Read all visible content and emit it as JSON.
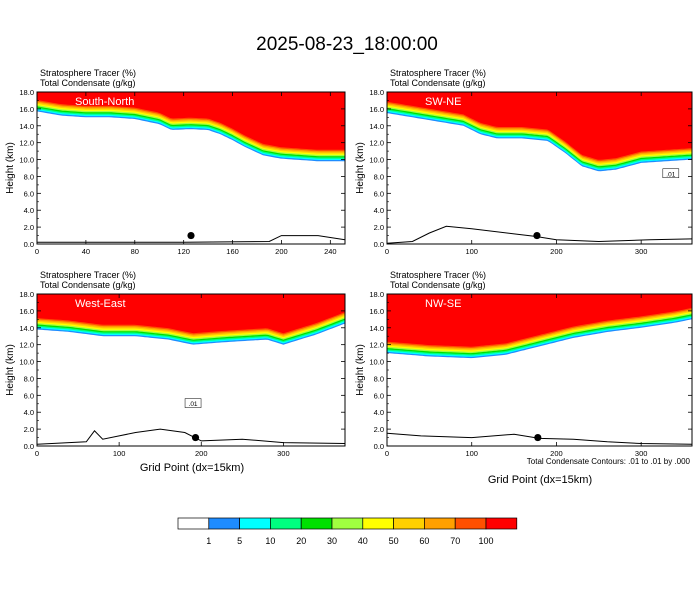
{
  "figure": {
    "title": "2025-08-23_18:00:00",
    "x_title": "Grid Point (dx=15km)",
    "contour_note": "Total Condensate Contours: .01 to .01 by .000",
    "colorbar": {
      "labels": [
        "1",
        "5",
        "10",
        "20",
        "30",
        "40",
        "50",
        "60",
        "70",
        "100"
      ],
      "colors": [
        "#ffffff",
        "#1e8cff",
        "#00ffff",
        "#00ff80",
        "#00e000",
        "#a0ff40",
        "#ffff00",
        "#ffd000",
        "#ffa000",
        "#ff5000",
        "#ff0000"
      ]
    }
  },
  "chart_data": [
    {
      "type": "heatmap",
      "title": "South-North",
      "subtitle1": "Stratosphere Tracer   (%)",
      "subtitle2": "Total Condensate   (g/kg)",
      "ylabel": "Height (km)",
      "xlabel": "",
      "xlim": [
        0,
        252
      ],
      "ylim": [
        0,
        18
      ],
      "xticks": [
        0,
        40,
        80,
        120,
        160,
        200,
        240
      ],
      "yticks": [
        0,
        2,
        4,
        6,
        8,
        10,
        12,
        14,
        16,
        18
      ],
      "tracer_boundary_height_km": [
        [
          0,
          15.7
        ],
        [
          20,
          15.2
        ],
        [
          40,
          15.0
        ],
        [
          60,
          15.0
        ],
        [
          80,
          14.8
        ],
        [
          100,
          14.2
        ],
        [
          110,
          13.5
        ],
        [
          125,
          13.6
        ],
        [
          140,
          13.5
        ],
        [
          150,
          13.0
        ],
        [
          160,
          12.3
        ],
        [
          170,
          11.5
        ],
        [
          185,
          10.5
        ],
        [
          200,
          10.1
        ],
        [
          230,
          9.8
        ],
        [
          252,
          9.8
        ]
      ],
      "terrain_height_km": [
        [
          0,
          0.2
        ],
        [
          120,
          0.2
        ],
        [
          190,
          0.3
        ],
        [
          200,
          1.0
        ],
        [
          230,
          1.0
        ],
        [
          252,
          0.5
        ]
      ],
      "marker": {
        "x": 126,
        "y": 1.0
      },
      "annotations": []
    },
    {
      "type": "heatmap",
      "title": "SW-NE",
      "subtitle1": "Stratosphere Tracer   (%)",
      "subtitle2": "Total Condensate   (g/kg)",
      "ylabel": "Height (km)",
      "xlabel": "",
      "xlim": [
        0,
        360
      ],
      "ylim": [
        0,
        18
      ],
      "xticks": [
        0,
        100,
        200,
        300
      ],
      "yticks": [
        0,
        2,
        4,
        6,
        8,
        10,
        12,
        14,
        16,
        18
      ],
      "tracer_boundary_height_km": [
        [
          0,
          15.5
        ],
        [
          30,
          15.0
        ],
        [
          60,
          14.5
        ],
        [
          90,
          14.0
        ],
        [
          110,
          13.0
        ],
        [
          130,
          12.5
        ],
        [
          160,
          12.5
        ],
        [
          190,
          12.2
        ],
        [
          210,
          10.8
        ],
        [
          230,
          9.2
        ],
        [
          250,
          8.6
        ],
        [
          270,
          8.8
        ],
        [
          300,
          9.6
        ],
        [
          330,
          9.8
        ],
        [
          360,
          10.0
        ]
      ],
      "terrain_height_km": [
        [
          0,
          0.1
        ],
        [
          30,
          0.3
        ],
        [
          50,
          1.3
        ],
        [
          70,
          2.1
        ],
        [
          100,
          1.8
        ],
        [
          150,
          1.2
        ],
        [
          175,
          0.9
        ],
        [
          200,
          0.5
        ],
        [
          250,
          0.3
        ],
        [
          310,
          0.5
        ],
        [
          360,
          0.6
        ]
      ],
      "marker": {
        "x": 177,
        "y": 1.0
      },
      "annotations": [
        ".01"
      ]
    },
    {
      "type": "heatmap",
      "title": "West-East",
      "subtitle1": "Stratosphere Tracer   (%)",
      "subtitle2": "Total Condensate   (g/kg)",
      "ylabel": "Height (km)",
      "xlabel": "",
      "xlim": [
        0,
        375
      ],
      "ylim": [
        0,
        18
      ],
      "xticks": [
        0,
        100,
        200,
        300
      ],
      "yticks": [
        0,
        2,
        4,
        6,
        8,
        10,
        12,
        14,
        16,
        18
      ],
      "tracer_boundary_height_km": [
        [
          0,
          13.8
        ],
        [
          40,
          13.5
        ],
        [
          80,
          13.0
        ],
        [
          120,
          13.0
        ],
        [
          160,
          12.6
        ],
        [
          190,
          12.0
        ],
        [
          230,
          12.3
        ],
        [
          280,
          12.6
        ],
        [
          300,
          12.0
        ],
        [
          340,
          13.2
        ],
        [
          375,
          14.5
        ]
      ],
      "terrain_height_km": [
        [
          0,
          0.2
        ],
        [
          60,
          0.5
        ],
        [
          70,
          1.8
        ],
        [
          80,
          0.8
        ],
        [
          100,
          1.2
        ],
        [
          120,
          1.6
        ],
        [
          150,
          2.0
        ],
        [
          180,
          1.6
        ],
        [
          200,
          0.6
        ],
        [
          250,
          0.8
        ],
        [
          300,
          0.4
        ],
        [
          375,
          0.3
        ]
      ],
      "marker": {
        "x": 193,
        "y": 1.0
      },
      "annotations": [
        ".01"
      ]
    },
    {
      "type": "heatmap",
      "title": "NW-SE",
      "subtitle1": "Stratosphere Tracer   (%)",
      "subtitle2": "Total Condensate   (g/kg)",
      "ylabel": "Height (km)",
      "xlabel": "",
      "xlim": [
        0,
        360
      ],
      "ylim": [
        0,
        18
      ],
      "xticks": [
        0,
        100,
        200,
        300
      ],
      "yticks": [
        0,
        2,
        4,
        6,
        8,
        10,
        12,
        14,
        16,
        18
      ],
      "tracer_boundary_height_km": [
        [
          0,
          11.0
        ],
        [
          50,
          10.6
        ],
        [
          100,
          10.4
        ],
        [
          140,
          10.8
        ],
        [
          180,
          11.8
        ],
        [
          220,
          12.8
        ],
        [
          260,
          13.5
        ],
        [
          300,
          14.0
        ],
        [
          340,
          14.6
        ],
        [
          360,
          15.0
        ]
      ],
      "terrain_height_km": [
        [
          0,
          1.5
        ],
        [
          40,
          1.2
        ],
        [
          100,
          1.0
        ],
        [
          150,
          1.4
        ],
        [
          180,
          0.9
        ],
        [
          220,
          0.8
        ],
        [
          260,
          0.5
        ],
        [
          300,
          0.3
        ],
        [
          360,
          0.2
        ]
      ],
      "marker": {
        "x": 178,
        "y": 1.0
      },
      "annotations": []
    }
  ]
}
